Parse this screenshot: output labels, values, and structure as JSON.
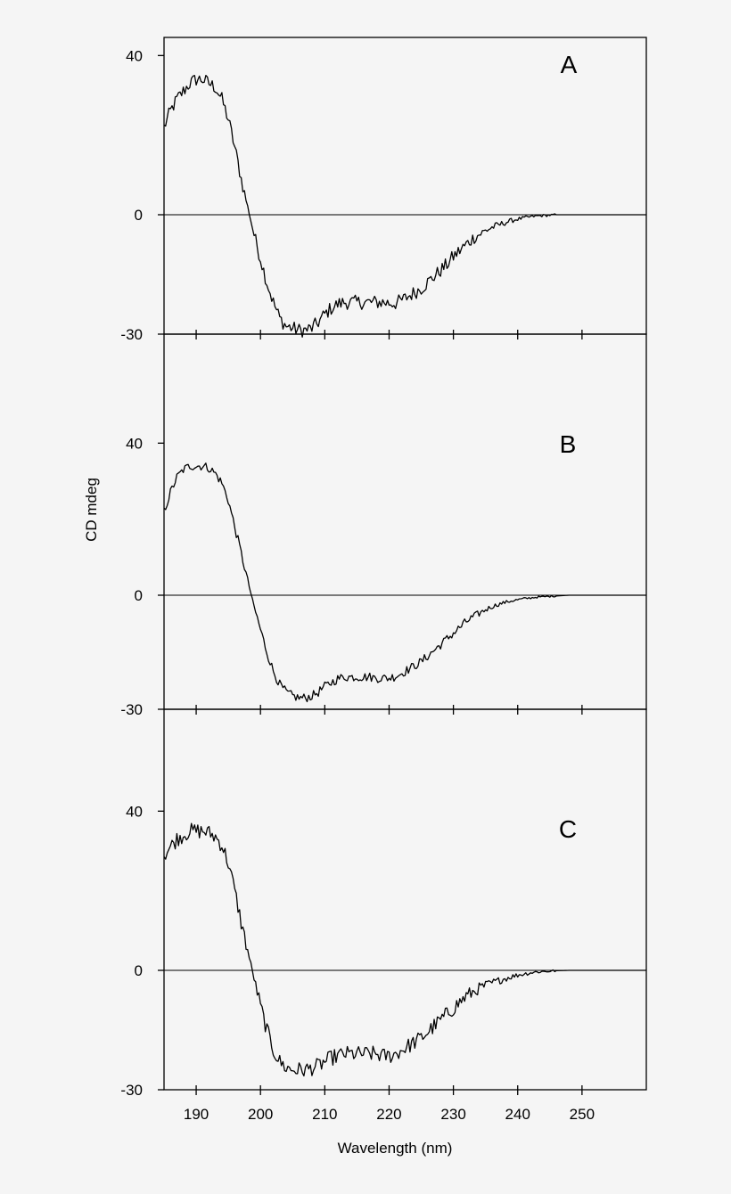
{
  "chart_data": {
    "type": "line",
    "xlabel": "Wavelength (nm)",
    "ylabel": "CD mdeg",
    "xlim": [
      185,
      260
    ],
    "xticks": [
      190,
      200,
      210,
      220,
      230,
      240,
      250
    ],
    "xtick_labels": [
      "190",
      "200",
      "210",
      "220",
      "230",
      "240",
      "250"
    ],
    "grid": false,
    "panels": [
      {
        "letter": "A",
        "ylim": [
          -30,
          45
        ],
        "yticks": [
          40,
          0,
          -30
        ],
        "ytick_labels": [
          "40",
          "0",
          "-30"
        ],
        "zero_line": true,
        "noise": 1.8,
        "x": [
          185,
          186,
          187,
          188,
          189,
          190,
          191,
          192,
          193,
          194,
          195,
          196,
          197,
          198,
          199,
          200,
          201,
          202,
          203,
          204,
          205,
          206,
          207,
          208,
          209,
          210,
          211,
          212,
          213,
          214,
          215,
          216,
          217,
          218,
          219,
          220,
          221,
          222,
          223,
          224,
          225,
          226,
          227,
          228,
          229,
          230,
          231,
          232,
          233,
          234,
          235,
          236,
          237,
          238,
          239,
          240,
          241,
          242,
          243,
          244,
          245,
          246,
          247,
          248,
          249,
          250,
          255,
          260
        ],
        "y": [
          22,
          26,
          29,
          31,
          33,
          34,
          34,
          33,
          32,
          29,
          24,
          17,
          9,
          2,
          -5,
          -11,
          -17,
          -22,
          -26,
          -28,
          -28.5,
          -29,
          -29,
          -28.5,
          -27,
          -25,
          -23.5,
          -22.5,
          -22,
          -22,
          -22,
          -22,
          -22,
          -22,
          -22,
          -22.2,
          -22.2,
          -21.5,
          -20.5,
          -19.5,
          -18.5,
          -17,
          -15.5,
          -14,
          -12.5,
          -10.5,
          -9,
          -7.5,
          -6,
          -5,
          -4,
          -3.2,
          -2.6,
          -2,
          -1.5,
          -1.1,
          -0.8,
          -0.5,
          -0.3,
          -0.2,
          -0.1,
          0,
          0,
          0,
          0,
          0,
          0,
          0
        ]
      },
      {
        "letter": "B",
        "ylim": [
          -30,
          60
        ],
        "yticks": [
          40,
          0,
          -30
        ],
        "ytick_labels": [
          "40",
          "0",
          "-30"
        ],
        "zero_line": true,
        "noise": 1.2,
        "x": [
          185,
          186,
          187,
          188,
          189,
          190,
          191,
          192,
          193,
          194,
          195,
          196,
          197,
          198,
          199,
          200,
          201,
          202,
          203,
          204,
          205,
          206,
          207,
          208,
          209,
          210,
          211,
          212,
          213,
          214,
          215,
          216,
          217,
          218,
          219,
          220,
          221,
          222,
          223,
          224,
          225,
          226,
          227,
          228,
          229,
          230,
          231,
          232,
          233,
          234,
          235,
          236,
          237,
          238,
          239,
          240,
          241,
          242,
          243,
          244,
          245,
          246,
          247,
          248,
          249,
          250,
          255,
          260
        ],
        "y": [
          22,
          27,
          31,
          33,
          34,
          34,
          34,
          33.5,
          32,
          29.5,
          25,
          18,
          11,
          4,
          -3,
          -9,
          -15,
          -20,
          -23.5,
          -25.5,
          -26.5,
          -27,
          -27,
          -26.5,
          -25.5,
          -24,
          -23,
          -22,
          -21.5,
          -21.5,
          -21.5,
          -21.5,
          -21.5,
          -21.8,
          -21.8,
          -21.8,
          -21.3,
          -20.5,
          -19.5,
          -18.5,
          -17.5,
          -16,
          -14.5,
          -13,
          -11.5,
          -10,
          -8.5,
          -7,
          -5.8,
          -4.8,
          -3.8,
          -3,
          -2.4,
          -1.9,
          -1.5,
          -1.2,
          -0.9,
          -0.7,
          -0.5,
          -0.4,
          -0.3,
          -0.2,
          -0.1,
          0,
          0,
          0,
          0,
          0
        ]
      },
      {
        "letter": "C",
        "ylim": [
          -30,
          60
        ],
        "yticks": [
          40,
          0,
          -30
        ],
        "ytick_labels": [
          "40",
          "0",
          "-30"
        ],
        "zero_line": true,
        "noise": 2.0,
        "x": [
          185,
          186,
          187,
          188,
          189,
          190,
          191,
          192,
          193,
          194,
          195,
          196,
          197,
          198,
          199,
          200,
          201,
          202,
          203,
          204,
          205,
          206,
          207,
          208,
          209,
          210,
          211,
          212,
          213,
          214,
          215,
          216,
          217,
          218,
          219,
          220,
          221,
          222,
          223,
          224,
          225,
          226,
          227,
          228,
          229,
          230,
          231,
          232,
          233,
          234,
          235,
          236,
          237,
          238,
          239,
          240,
          241,
          242,
          243,
          244,
          245,
          246,
          247,
          248,
          249,
          250,
          255,
          260
        ],
        "y": [
          29,
          31,
          33,
          34,
          35,
          35,
          35,
          34.5,
          33.5,
          31.5,
          27,
          20,
          12,
          5,
          -2,
          -9,
          -15,
          -20,
          -23,
          -24.5,
          -25,
          -25,
          -25,
          -24.5,
          -24,
          -23,
          -22,
          -21.5,
          -21,
          -21,
          -21,
          -21,
          -21,
          -21,
          -21.5,
          -21.5,
          -21,
          -20,
          -19,
          -18,
          -17,
          -15.5,
          -14,
          -12.5,
          -11,
          -9.5,
          -8,
          -6.5,
          -5.5,
          -4.5,
          -3.8,
          -3.2,
          -2.6,
          -2.1,
          -1.6,
          -1.2,
          -0.9,
          -0.6,
          -0.4,
          -0.3,
          -0.2,
          -0.1,
          0,
          0,
          0,
          0,
          0,
          0
        ]
      }
    ]
  }
}
